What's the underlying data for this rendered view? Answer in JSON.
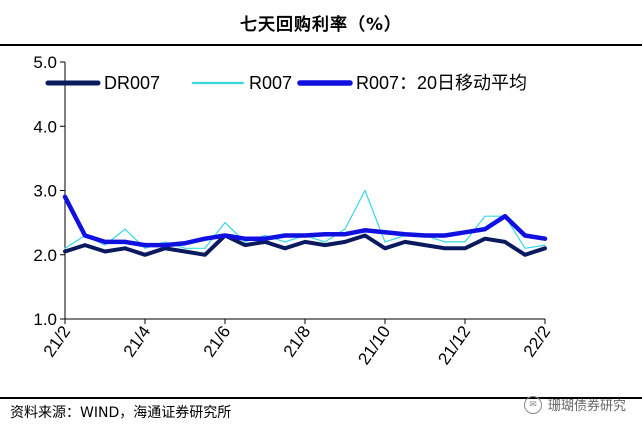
{
  "header": {
    "title": "七天回购利率（%）"
  },
  "footer": {
    "source": "资料来源：WIND，海通证券研究所",
    "watermark": "珊瑚债券研究"
  },
  "chart_data": {
    "type": "line",
    "title": "七天回购利率（%）",
    "xlabel": "",
    "ylabel": "",
    "ylim": [
      1.0,
      5.0
    ],
    "yticks": [
      "1.0",
      "2.0",
      "3.0",
      "4.0",
      "5.0"
    ],
    "xticks": [
      "21/2",
      "21/4",
      "21/6",
      "21/8",
      "21/10",
      "21/12",
      "22/2"
    ],
    "x": [
      "21/2",
      "21/2b",
      "21/3",
      "21/3b",
      "21/4",
      "21/4b",
      "21/5",
      "21/5b",
      "21/6",
      "21/6b",
      "21/7",
      "21/7b",
      "21/8",
      "21/8b",
      "21/9",
      "21/9b",
      "21/10",
      "21/10b",
      "21/11",
      "21/11b",
      "21/12",
      "21/12b",
      "22/1",
      "22/1b",
      "22/2"
    ],
    "series": [
      {
        "name": "DR007",
        "color": "#0b1a5e",
        "values": [
          2.05,
          2.15,
          2.05,
          2.1,
          2.0,
          2.1,
          2.05,
          2.0,
          2.3,
          2.15,
          2.2,
          2.1,
          2.2,
          2.15,
          2.2,
          2.3,
          2.1,
          2.2,
          2.15,
          2.1,
          2.1,
          2.25,
          2.2,
          2.0,
          2.1
        ]
      },
      {
        "name": "R007",
        "color": "#37d7e6",
        "values": [
          2.1,
          2.3,
          2.15,
          2.4,
          2.1,
          2.2,
          2.1,
          2.1,
          2.5,
          2.2,
          2.3,
          2.2,
          2.3,
          2.2,
          2.4,
          3.0,
          2.2,
          2.3,
          2.3,
          2.2,
          2.2,
          2.6,
          2.6,
          2.1,
          2.15
        ]
      },
      {
        "name": "R007：20日移动平均",
        "color": "#1010e0",
        "values": [
          2.9,
          2.3,
          2.2,
          2.2,
          2.15,
          2.15,
          2.18,
          2.25,
          2.3,
          2.25,
          2.25,
          2.3,
          2.3,
          2.32,
          2.32,
          2.38,
          2.35,
          2.32,
          2.3,
          2.3,
          2.35,
          2.4,
          2.6,
          2.3,
          2.25
        ]
      }
    ]
  }
}
